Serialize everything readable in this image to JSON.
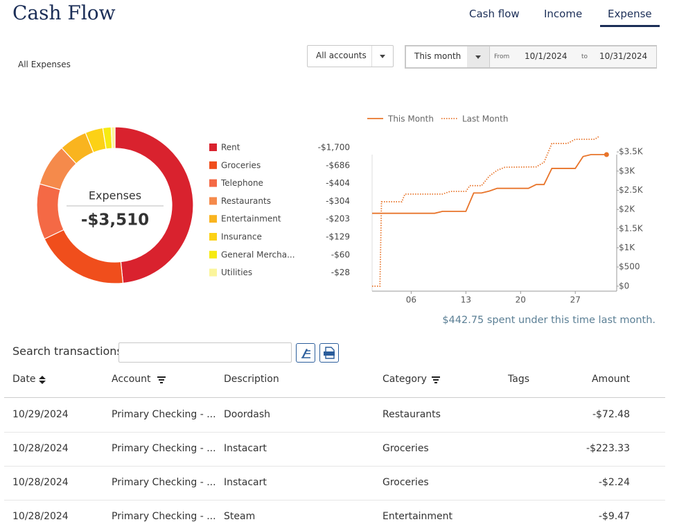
{
  "header": {
    "title": "Cash Flow",
    "tabs": [
      "Cash flow",
      "Income",
      "Expense"
    ],
    "active_tab": 2
  },
  "filters": {
    "section": "All Expenses",
    "account": "All accounts",
    "period": "This month",
    "from_label": "From",
    "from": "10/1/2024",
    "to_label": "to",
    "to": "10/31/2024"
  },
  "chart_data": [
    {
      "type": "pie",
      "center_label": "Expenses",
      "center_value": "-$3,510",
      "categories": [
        "Rent",
        "Groceries",
        "Telephone",
        "Restaurants",
        "Entertainment",
        "Insurance",
        "General Mercha...",
        "Utilities"
      ],
      "values": [
        -1700,
        -686,
        -404,
        -304,
        -203,
        -129,
        -60,
        -28
      ],
      "value_labels": [
        "-$1,700",
        "-$686",
        "-$404",
        "-$304",
        "-$203",
        "-$129",
        "-$60",
        "-$28"
      ],
      "colors": [
        "#d9222e",
        "#f04e1c",
        "#f46945",
        "#f58a4b",
        "#f9b41f",
        "#fcd116",
        "#f6ea12",
        "#fbf59c"
      ]
    },
    {
      "type": "line",
      "series": [
        {
          "name": "This Month",
          "color": "#e8742a",
          "style": "solid",
          "end_marker": true,
          "x": [
            1,
            9,
            10,
            13,
            14,
            15,
            16,
            17,
            21,
            22,
            23,
            24,
            27,
            28,
            29,
            31
          ],
          "values": [
            1900,
            1900,
            1950,
            1950,
            2430,
            2430,
            2480,
            2550,
            2550,
            2650,
            2650,
            3070,
            3070,
            3380,
            3430,
            3430
          ]
        },
        {
          "name": "Last Month",
          "color": "#e8742a",
          "style": "dotted",
          "end_marker": false,
          "x": [
            1,
            2,
            2.2,
            4.8,
            5.2,
            10,
            11,
            13,
            13.5,
            15,
            16,
            17,
            18,
            22,
            23,
            24,
            26,
            27,
            29.5,
            30
          ],
          "values": [
            0,
            0,
            2200,
            2200,
            2400,
            2400,
            2470,
            2470,
            2620,
            2620,
            2870,
            3020,
            3100,
            3110,
            3230,
            3720,
            3720,
            3830,
            3830,
            3900
          ]
        }
      ],
      "xlim": [
        1,
        32.3
      ],
      "xticks": [
        {
          "value": 6,
          "label": "06"
        },
        {
          "value": 13,
          "label": "13"
        },
        {
          "value": 20,
          "label": "20"
        },
        {
          "value": 27,
          "label": "27"
        }
      ],
      "ylim": [
        -130,
        3900
      ],
      "yticks": [
        {
          "value": 0,
          "label": "$0"
        },
        {
          "value": 500,
          "label": "$500"
        },
        {
          "value": 1000,
          "label": "$1K"
        },
        {
          "value": 1500,
          "label": "$1.5K"
        },
        {
          "value": 2000,
          "label": "$2K"
        },
        {
          "value": 2500,
          "label": "$2.5K"
        },
        {
          "value": 3000,
          "label": "$3K"
        },
        {
          "value": 3500,
          "label": "$3.5K"
        }
      ],
      "annotation": "$442.75 spent under this time last month."
    }
  ],
  "search": {
    "label": "Search transactions"
  },
  "table": {
    "columns": [
      "Date",
      "Account",
      "Description",
      "Category",
      "Tags",
      "Amount"
    ],
    "rows": [
      [
        "10/29/2024",
        "Primary Checking - ...",
        "Doordash",
        "Restaurants",
        "",
        "-$72.48"
      ],
      [
        "10/28/2024",
        "Primary Checking - ...",
        "Instacart",
        "Groceries",
        "",
        "-$223.33"
      ],
      [
        "10/28/2024",
        "Primary Checking - ...",
        "Instacart",
        "Groceries",
        "",
        "-$2.24"
      ],
      [
        "10/28/2024",
        "Primary Checking - ...",
        "Steam",
        "Entertainment",
        "",
        "-$9.47"
      ]
    ]
  }
}
